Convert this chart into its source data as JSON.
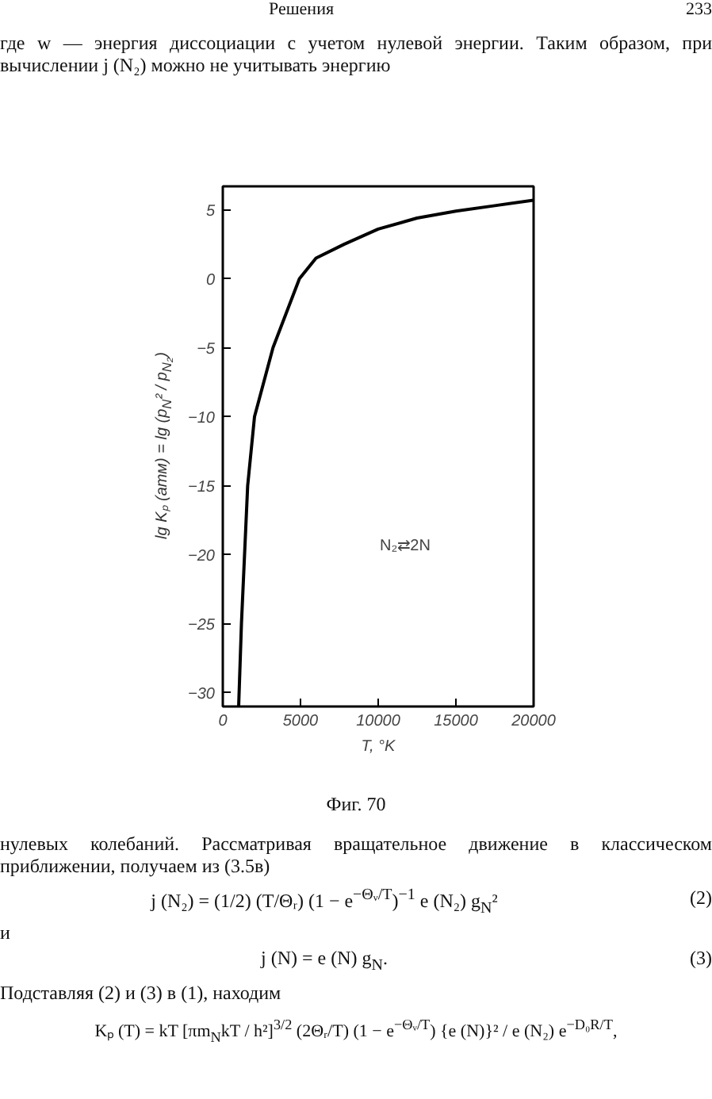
{
  "chart_data": {
    "type": "line",
    "xlabel": "T, °K",
    "ylabel": "lg Kₚ (атм) = lg (p$_{N}$² / p$_{N₂}$)",
    "x": [
      1020,
      1200,
      1600,
      2040,
      3230,
      4930,
      6000,
      7800,
      10000,
      12500,
      15000,
      17500,
      20000
    ],
    "series": [
      {
        "color": "#000000",
        "values": [
          -31,
          -25,
          -15,
          -10,
          -5,
          0,
          1.5,
          2.5,
          3.6,
          4.4,
          4.9,
          5.3,
          5.7
        ]
      }
    ],
    "xlim": [
      0,
      20000
    ],
    "xticks": [
      0,
      5000,
      10000,
      15000,
      20000
    ],
    "ylim": [
      -31,
      6.7
    ],
    "yticks": [
      5,
      0,
      -5,
      -10,
      -15,
      -20,
      -25,
      -30
    ],
    "grid": false,
    "line_style": "solid",
    "annotations": [
      "Решения",
      "233",
      "где w — энергия диссоциации с учетом нулевой энергии. Таким образом, при вычислении j (N₂) можно не учитывать энергию",
      "Фиг. 70",
      "нулевых колебаний. Рассматривая вращательное движение в классическом приближении, получаем из (3.5в)",
      "j (N₂) = (1/2) (T/Θᵣ) (1 − e$^{−Θᵥ/T}$)$^{−1}$ e (N₂) g$_{N}$²",
      "(2)",
      "и",
      "j (N) = e (N) g$_{N}$.",
      "(3)",
      "Подставляя (2) и (3) в (1), находим",
      "Kₚ (T) = kT [πm$_{N}$kT / h²]$^{3/2}$ (2Θᵣ/T) (1 − e$^{−Θᵥ/T}$) {e (N)}² / e (N₂) e$^{−D₀R/T}$,",
      "N₂⇄2N"
    ]
  }
}
